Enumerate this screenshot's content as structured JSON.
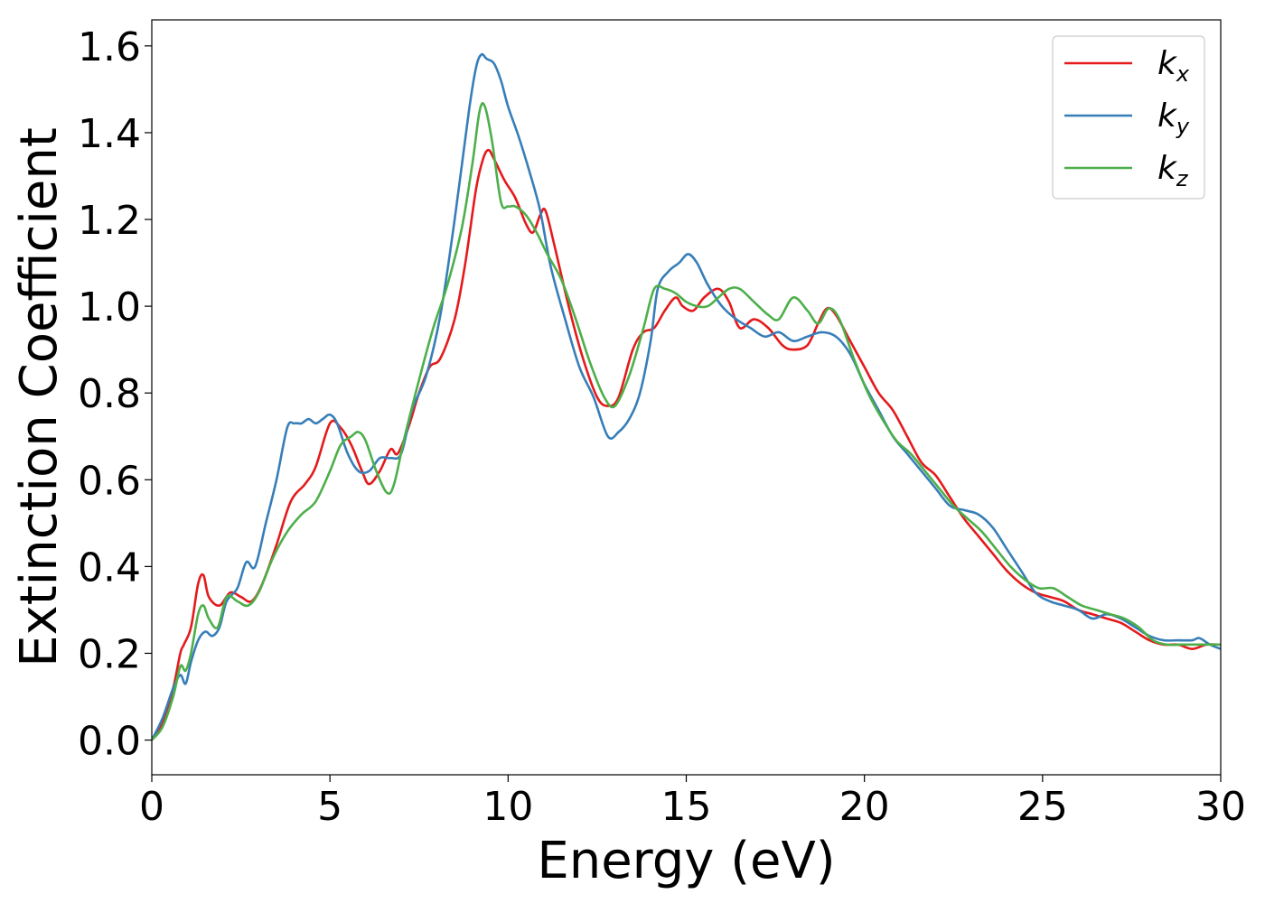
{
  "chart_data": {
    "type": "line",
    "xlabel": "Energy (eV)",
    "ylabel": "Extinction Coefficient",
    "xlim": [
      0,
      30
    ],
    "ylim": [
      -0.08,
      1.66
    ],
    "xticks": [
      0,
      5,
      10,
      15,
      20,
      25,
      30
    ],
    "yticks": [
      0.0,
      0.2,
      0.4,
      0.6,
      0.8,
      1.0,
      1.2,
      1.4,
      1.6
    ],
    "xtick_labels": [
      "0",
      "5",
      "10",
      "15",
      "20",
      "25",
      "30"
    ],
    "ytick_labels": [
      "0.0",
      "0.2",
      "0.4",
      "0.6",
      "0.8",
      "1.0",
      "1.2",
      "1.4",
      "1.6"
    ],
    "grid": false,
    "legend_position": "top-right",
    "series": [
      {
        "name": "k",
        "subscript": "x",
        "color": "#e41a1c",
        "x": [
          0,
          0.3,
          0.6,
          0.8,
          0.9,
          1.1,
          1.3,
          1.45,
          1.6,
          1.9,
          2.2,
          2.5,
          2.8,
          3.1,
          3.5,
          3.9,
          4.3,
          4.6,
          5.0,
          5.3,
          5.6,
          5.9,
          6.1,
          6.4,
          6.7,
          6.9,
          7.2,
          7.5,
          7.8,
          8.1,
          8.5,
          8.8,
          9.1,
          9.3,
          9.45,
          9.6,
          9.9,
          10.2,
          10.5,
          10.7,
          10.9,
          11.05,
          11.3,
          11.7,
          12.1,
          12.5,
          12.8,
          13.1,
          13.5,
          13.8,
          14.1,
          14.4,
          14.7,
          14.9,
          15.2,
          15.5,
          15.9,
          16.2,
          16.5,
          16.9,
          17.3,
          17.7,
          18.0,
          18.4,
          18.7,
          18.95,
          19.2,
          19.6,
          20.0,
          20.4,
          20.8,
          21.2,
          21.6,
          22.0,
          22.4,
          22.8,
          23.2,
          23.6,
          24.0,
          24.4,
          24.8,
          25.2,
          25.6,
          26.0,
          26.4,
          26.8,
          27.2,
          27.6,
          28.0,
          28.4,
          28.8,
          29.2,
          29.6,
          30.0
        ],
        "values": [
          0.0,
          0.04,
          0.12,
          0.2,
          0.22,
          0.26,
          0.36,
          0.38,
          0.33,
          0.31,
          0.34,
          0.33,
          0.32,
          0.36,
          0.45,
          0.55,
          0.59,
          0.63,
          0.73,
          0.72,
          0.68,
          0.62,
          0.59,
          0.62,
          0.67,
          0.66,
          0.72,
          0.8,
          0.86,
          0.88,
          0.97,
          1.1,
          1.27,
          1.34,
          1.36,
          1.34,
          1.29,
          1.25,
          1.19,
          1.17,
          1.21,
          1.22,
          1.14,
          1.0,
          0.88,
          0.79,
          0.77,
          0.79,
          0.9,
          0.94,
          0.95,
          0.99,
          1.02,
          1.0,
          0.99,
          1.02,
          1.04,
          1.01,
          0.95,
          0.97,
          0.95,
          0.91,
          0.9,
          0.91,
          0.96,
          0.995,
          0.98,
          0.92,
          0.86,
          0.8,
          0.76,
          0.7,
          0.64,
          0.61,
          0.56,
          0.51,
          0.47,
          0.43,
          0.39,
          0.36,
          0.34,
          0.33,
          0.32,
          0.3,
          0.29,
          0.28,
          0.27,
          0.25,
          0.23,
          0.22,
          0.22,
          0.21,
          0.22,
          0.22
        ]
      },
      {
        "name": "k",
        "subscript": "y",
        "color": "#377eb8",
        "x": [
          0,
          0.3,
          0.6,
          0.8,
          0.95,
          1.1,
          1.3,
          1.5,
          1.7,
          1.9,
          2.1,
          2.4,
          2.65,
          2.9,
          3.2,
          3.5,
          3.8,
          4.0,
          4.2,
          4.4,
          4.6,
          4.8,
          5.0,
          5.2,
          5.5,
          5.8,
          6.1,
          6.4,
          6.7,
          7.0,
          7.3,
          7.7,
          8.1,
          8.5,
          8.9,
          9.1,
          9.25,
          9.4,
          9.6,
          9.8,
          10.0,
          10.3,
          10.6,
          10.9,
          11.2,
          11.6,
          12.0,
          12.4,
          12.8,
          13.1,
          13.4,
          13.7,
          14.0,
          14.2,
          14.5,
          14.8,
          15.05,
          15.3,
          15.6,
          16.0,
          16.4,
          16.8,
          17.2,
          17.6,
          18.0,
          18.4,
          18.8,
          19.2,
          19.6,
          20.0,
          20.4,
          20.8,
          21.2,
          21.6,
          22.0,
          22.4,
          22.8,
          23.2,
          23.6,
          24.0,
          24.4,
          24.8,
          25.2,
          25.6,
          26.0,
          26.4,
          26.8,
          27.2,
          27.6,
          28.0,
          28.4,
          28.8,
          29.2,
          29.4,
          29.7,
          30.0
        ],
        "values": [
          0.0,
          0.05,
          0.12,
          0.15,
          0.13,
          0.18,
          0.23,
          0.25,
          0.24,
          0.26,
          0.32,
          0.35,
          0.41,
          0.4,
          0.5,
          0.6,
          0.72,
          0.73,
          0.73,
          0.74,
          0.73,
          0.74,
          0.75,
          0.73,
          0.66,
          0.62,
          0.62,
          0.65,
          0.65,
          0.66,
          0.76,
          0.84,
          0.98,
          1.2,
          1.45,
          1.55,
          1.58,
          1.57,
          1.56,
          1.52,
          1.46,
          1.39,
          1.31,
          1.22,
          1.09,
          0.97,
          0.86,
          0.79,
          0.7,
          0.71,
          0.74,
          0.8,
          0.92,
          1.04,
          1.08,
          1.1,
          1.12,
          1.1,
          1.05,
          1.0,
          0.97,
          0.95,
          0.93,
          0.94,
          0.92,
          0.93,
          0.94,
          0.93,
          0.89,
          0.82,
          0.76,
          0.7,
          0.66,
          0.62,
          0.58,
          0.54,
          0.53,
          0.52,
          0.49,
          0.44,
          0.39,
          0.34,
          0.32,
          0.31,
          0.3,
          0.28,
          0.29,
          0.28,
          0.26,
          0.24,
          0.23,
          0.23,
          0.23,
          0.235,
          0.22,
          0.21
        ]
      },
      {
        "name": "k",
        "subscript": "z",
        "color": "#4daf4a",
        "x": [
          0,
          0.3,
          0.6,
          0.8,
          0.95,
          1.1,
          1.3,
          1.45,
          1.6,
          1.85,
          2.1,
          2.4,
          2.7,
          3.0,
          3.4,
          3.8,
          4.2,
          4.6,
          5.0,
          5.3,
          5.6,
          5.8,
          6.0,
          6.3,
          6.6,
          6.8,
          7.1,
          7.5,
          7.9,
          8.3,
          8.7,
          9.0,
          9.2,
          9.35,
          9.55,
          9.8,
          10.0,
          10.2,
          10.5,
          10.8,
          11.1,
          11.5,
          11.9,
          12.3,
          12.7,
          13.0,
          13.4,
          13.8,
          14.1,
          14.4,
          14.7,
          15.0,
          15.3,
          15.6,
          15.9,
          16.2,
          16.5,
          16.9,
          17.3,
          17.6,
          18.0,
          18.4,
          18.7,
          19.0,
          19.3,
          19.7,
          20.1,
          20.5,
          20.9,
          21.3,
          21.7,
          22.1,
          22.5,
          22.9,
          23.3,
          23.7,
          24.1,
          24.5,
          24.9,
          25.3,
          25.7,
          26.1,
          26.5,
          26.9,
          27.3,
          27.7,
          28.1,
          28.5,
          28.9,
          29.3,
          29.7,
          30.0
        ],
        "values": [
          0.0,
          0.03,
          0.1,
          0.17,
          0.16,
          0.2,
          0.29,
          0.31,
          0.28,
          0.26,
          0.33,
          0.32,
          0.31,
          0.34,
          0.42,
          0.48,
          0.52,
          0.55,
          0.62,
          0.68,
          0.7,
          0.71,
          0.69,
          0.62,
          0.57,
          0.59,
          0.7,
          0.83,
          0.95,
          1.05,
          1.18,
          1.33,
          1.45,
          1.46,
          1.38,
          1.24,
          1.23,
          1.23,
          1.21,
          1.17,
          1.12,
          1.06,
          0.97,
          0.87,
          0.79,
          0.77,
          0.84,
          0.95,
          1.04,
          1.04,
          1.03,
          1.01,
          1.0,
          1.0,
          1.02,
          1.04,
          1.04,
          1.01,
          0.98,
          0.97,
          1.02,
          0.99,
          0.96,
          0.995,
          0.97,
          0.88,
          0.8,
          0.74,
          0.69,
          0.66,
          0.62,
          0.58,
          0.54,
          0.51,
          0.48,
          0.44,
          0.4,
          0.37,
          0.35,
          0.35,
          0.33,
          0.31,
          0.3,
          0.29,
          0.28,
          0.26,
          0.23,
          0.22,
          0.22,
          0.22,
          0.22,
          0.22
        ]
      }
    ]
  }
}
